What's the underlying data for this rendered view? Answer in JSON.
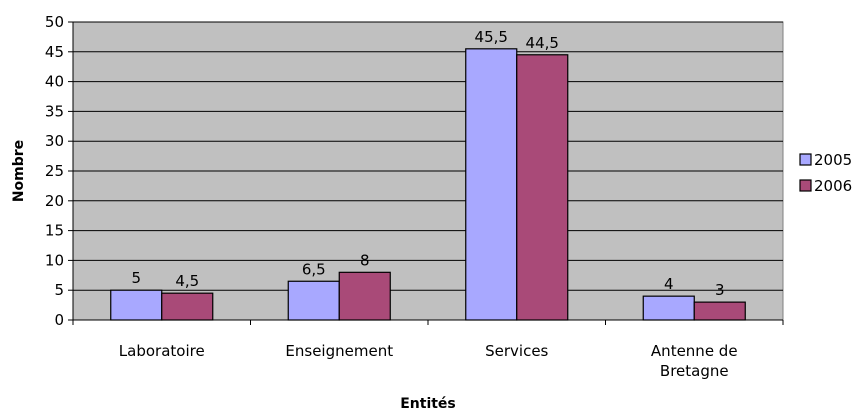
{
  "chart_data": {
    "type": "bar",
    "categories": [
      [
        "Laboratoire"
      ],
      [
        "Enseignement"
      ],
      [
        "Services"
      ],
      [
        "Antenne de",
        "Bretagne"
      ]
    ],
    "series": [
      {
        "name": "2005",
        "values": [
          5,
          6.5,
          45.5,
          4
        ],
        "labels": [
          "5",
          "6,5",
          "45,5",
          "4"
        ],
        "color": "#a8a8ff"
      },
      {
        "name": "2006",
        "values": [
          4.5,
          8,
          44.5,
          3
        ],
        "labels": [
          "4,5",
          "8",
          "44,5",
          "3"
        ],
        "color": "#a94a78"
      }
    ],
    "xlabel": "Entités",
    "ylabel": "Nombre",
    "ylim": [
      0,
      50
    ],
    "ytick_step": 5,
    "grid": true,
    "plot_background": "#c0c0c0",
    "legend_position": "right"
  }
}
